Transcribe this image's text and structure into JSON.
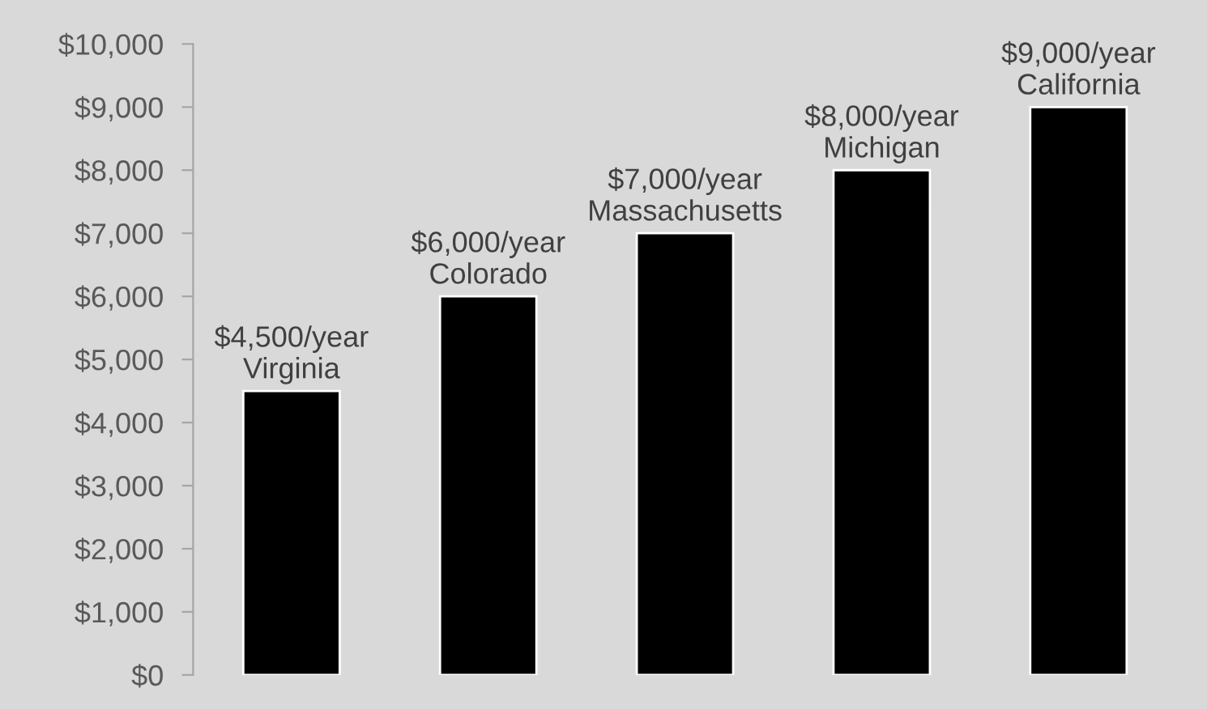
{
  "chart_data": {
    "type": "bar",
    "categories": [
      null,
      null,
      null,
      null,
      null
    ],
    "values": [
      4500,
      6000,
      7000,
      8000,
      9000
    ],
    "value_labels": [
      "$4,500/year\nVirginia",
      "$6,000/year\nColorado",
      "$7,000/year\nMassachusetts",
      "$8,000/year\nMichigan",
      "$9,000/year\nCalifornia"
    ],
    "color": "#000000",
    "ylim": [
      0,
      10000
    ],
    "yticks": [
      {
        "value": 0,
        "label": "$0"
      },
      {
        "value": 1000,
        "label": "$1,000"
      },
      {
        "value": 2000,
        "label": "$2,000"
      },
      {
        "value": 3000,
        "label": "$3,000"
      },
      {
        "value": 4000,
        "label": "$4,000"
      },
      {
        "value": 5000,
        "label": "$5,000"
      },
      {
        "value": 6000,
        "label": "$6,000"
      },
      {
        "value": 7000,
        "label": "$7,000"
      },
      {
        "value": 8000,
        "label": "$8,000"
      },
      {
        "value": 9000,
        "label": "$9,000"
      },
      {
        "value": 10000,
        "label": "$10,000"
      }
    ],
    "tick_labels": "y",
    "grid": false,
    "legend": false
  }
}
